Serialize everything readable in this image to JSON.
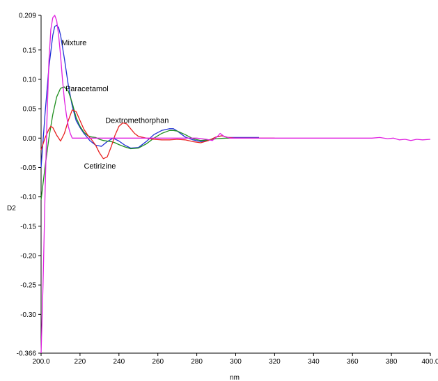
{
  "chart_data": {
    "type": "line",
    "title": "",
    "xlabel": "nm",
    "ylabel": "D2",
    "xlim": [
      200,
      400
    ],
    "ylim": [
      -0.366,
      0.209
    ],
    "grid": false,
    "x_ticks": [
      "200.0",
      "220",
      "240",
      "260",
      "280",
      "300",
      "320",
      "340",
      "360",
      "380",
      "400.0"
    ],
    "y_ticks": [
      "0.209",
      "0.15",
      "0.10",
      "0.05",
      "0.00",
      "-0.05",
      "-0.10",
      "-0.15",
      "-0.20",
      "-0.25",
      "-0.30",
      "-0.366"
    ],
    "y_tick_values": [
      0.209,
      0.15,
      0.1,
      0.05,
      0.0,
      -0.05,
      -0.1,
      -0.15,
      -0.2,
      -0.25,
      -0.3,
      -0.366
    ],
    "x_tick_values": [
      200,
      220,
      240,
      260,
      280,
      300,
      320,
      340,
      360,
      380,
      400
    ],
    "series": [
      {
        "name": "Mixture",
        "color": "#1f2fd6",
        "x": [
          200,
          202,
          204,
          206,
          207,
          208,
          209,
          210,
          212,
          214,
          216,
          218,
          220,
          222,
          225,
          228,
          231,
          234,
          237,
          240,
          243,
          246,
          250,
          254,
          258,
          262,
          266,
          268,
          270,
          274,
          278,
          282,
          286,
          290,
          293,
          296,
          300,
          305,
          312
        ],
        "y": [
          -0.05,
          0.04,
          0.12,
          0.175,
          0.19,
          0.192,
          0.188,
          0.175,
          0.135,
          0.09,
          0.055,
          0.03,
          0.018,
          0.008,
          -0.004,
          -0.012,
          -0.014,
          -0.006,
          0.0,
          -0.005,
          -0.012,
          -0.017,
          -0.016,
          -0.006,
          0.006,
          0.013,
          0.016,
          0.016,
          0.012,
          0.002,
          -0.003,
          -0.006,
          -0.004,
          0.002,
          0.004,
          0.001,
          0.001,
          0.001,
          0.001
        ]
      },
      {
        "name": "Paracetamol",
        "color": "#1f8f1f",
        "x": [
          200,
          202,
          204,
          206,
          208,
          210,
          212,
          214,
          216,
          218,
          220,
          222,
          224,
          226,
          228,
          230,
          232,
          234,
          236,
          238,
          240,
          243,
          246,
          250,
          254,
          258,
          262,
          266,
          268,
          270,
          274,
          278,
          282,
          286,
          290,
          295,
          300,
          305,
          312
        ],
        "y": [
          -0.105,
          -0.05,
          0.0,
          0.04,
          0.07,
          0.085,
          0.087,
          0.08,
          0.06,
          0.035,
          0.02,
          0.01,
          0.004,
          0.002,
          0.001,
          -0.002,
          -0.004,
          -0.005,
          -0.006,
          -0.008,
          -0.011,
          -0.015,
          -0.018,
          -0.017,
          -0.01,
          0.0,
          0.008,
          0.013,
          0.013,
          0.012,
          0.006,
          -0.001,
          -0.004,
          -0.003,
          -0.001,
          0.0,
          0.0,
          0.0,
          0.0
        ]
      },
      {
        "name": "Dextromethorphan",
        "color": "#e82020",
        "x": [
          200,
          202,
          204,
          205,
          206,
          208,
          210,
          212,
          214,
          216,
          218,
          220,
          222,
          224,
          226,
          228,
          230,
          232,
          234,
          236,
          238,
          240,
          242,
          244,
          246,
          248,
          250,
          254,
          258,
          262,
          266,
          270,
          274,
          278,
          282,
          286,
          290,
          293,
          296,
          300,
          310,
          320
        ],
        "y": [
          -0.02,
          0.0,
          0.015,
          0.02,
          0.018,
          0.005,
          -0.005,
          0.008,
          0.03,
          0.048,
          0.045,
          0.03,
          0.015,
          0.005,
          -0.003,
          -0.012,
          -0.025,
          -0.035,
          -0.032,
          -0.015,
          0.005,
          0.02,
          0.026,
          0.024,
          0.016,
          0.008,
          0.003,
          0.0,
          -0.002,
          -0.003,
          -0.003,
          -0.002,
          -0.003,
          -0.006,
          -0.008,
          -0.004,
          0.002,
          0.004,
          0.001,
          0.0,
          0.0,
          0.0
        ]
      },
      {
        "name": "Cetirizine",
        "color": "#e020e0",
        "x": [
          200,
          201,
          202,
          203,
          204,
          205,
          206,
          207,
          208,
          209,
          210,
          211,
          212,
          213,
          214,
          215,
          216,
          218,
          220,
          222,
          225,
          228,
          231,
          234,
          236,
          238,
          240,
          243,
          246,
          250,
          260,
          270,
          280,
          285,
          288,
          291,
          292,
          294,
          297,
          300,
          320,
          340,
          360,
          370,
          374,
          378,
          381,
          384,
          387,
          390,
          393,
          396,
          400
        ],
        "y": [
          -0.366,
          -0.25,
          -0.1,
          0.03,
          0.13,
          0.185,
          0.205,
          0.209,
          0.2,
          0.175,
          0.14,
          0.1,
          0.065,
          0.04,
          0.02,
          0.008,
          0.0,
          0.0,
          0.0,
          0.0,
          0.0,
          0.0,
          0.0,
          0.0,
          0.0,
          0.0,
          0.0,
          0.0,
          0.0,
          0.0,
          0.0,
          0.0,
          0.0,
          -0.002,
          -0.004,
          0.004,
          0.008,
          0.003,
          0.0,
          0.0,
          0.0,
          0.0,
          0.0,
          0.0,
          0.001,
          -0.001,
          0.0,
          -0.003,
          -0.002,
          -0.004,
          -0.002,
          -0.003,
          -0.002
        ]
      }
    ],
    "annotations": [
      {
        "text": "Mixture",
        "x": 210.5,
        "y": 0.158
      },
      {
        "text": "Paracetamol",
        "x": 212.5,
        "y": 0.08
      },
      {
        "text": "Dextromethorphan",
        "x": 233,
        "y": 0.026
      },
      {
        "text": "Cetirizine",
        "x": 222,
        "y": -0.052
      }
    ]
  }
}
